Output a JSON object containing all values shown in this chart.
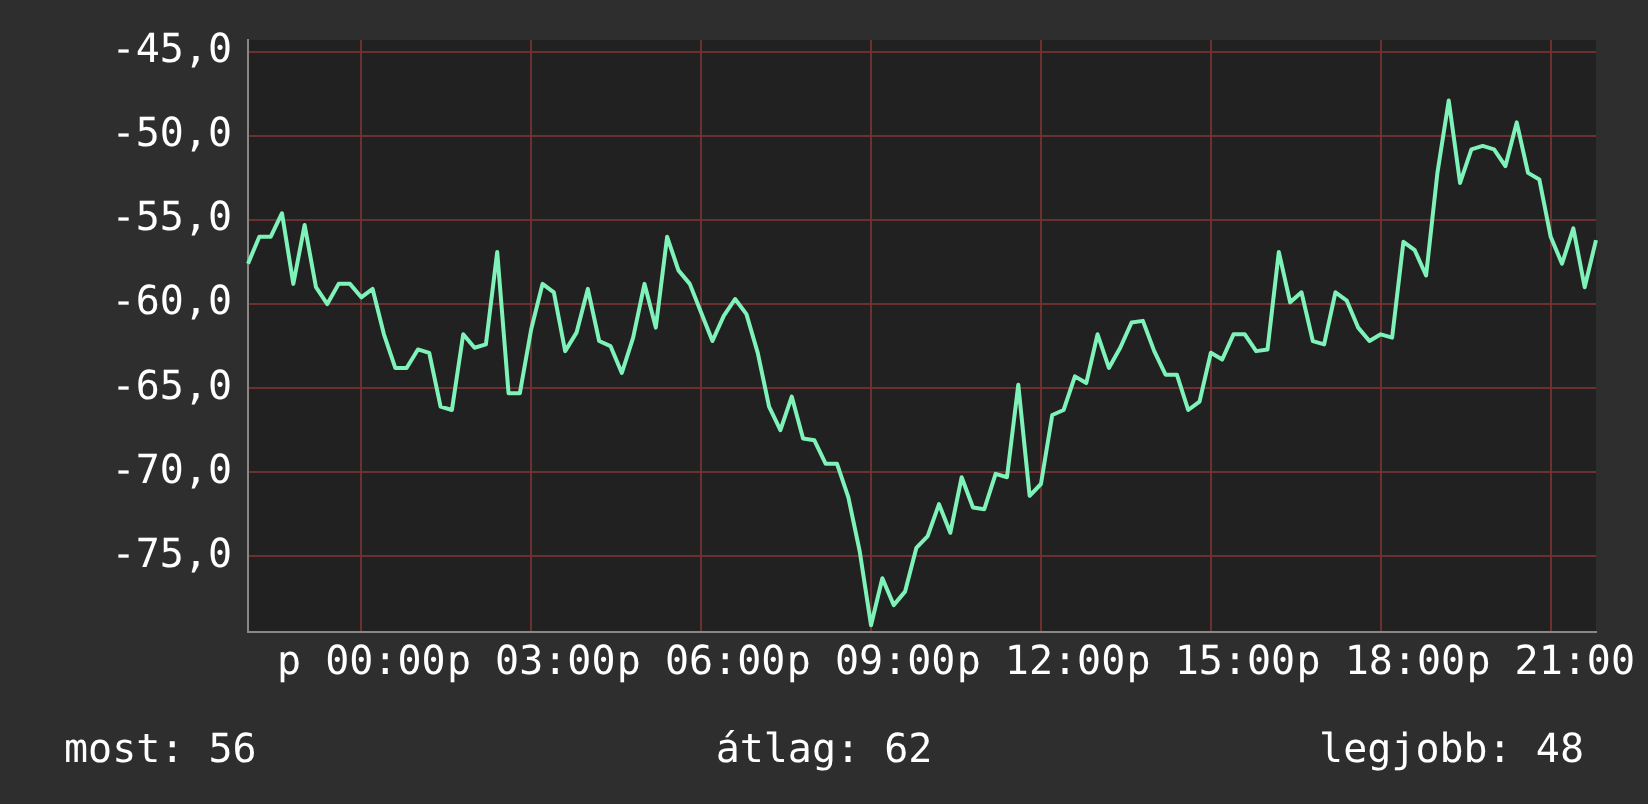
{
  "chart_data": {
    "type": "line",
    "color": "#7ef2b8",
    "grid": true,
    "legend": false,
    "marker": "none",
    "line_style": "solid",
    "categories": [
      null,
      null,
      null,
      null,
      null,
      null,
      null,
      null,
      null,
      null,
      "p 00:00",
      null,
      null,
      null,
      null,
      null,
      null,
      null,
      null,
      null,
      null,
      null,
      null,
      null,
      null,
      "p 03:00",
      null,
      null,
      null,
      null,
      null,
      null,
      null,
      null,
      null,
      null,
      null,
      null,
      null,
      null,
      "p 06:00",
      null,
      null,
      null,
      null,
      null,
      null,
      null,
      null,
      null,
      null,
      null,
      null,
      null,
      null,
      "p 09:00",
      null,
      null,
      null,
      null,
      null,
      null,
      null,
      null,
      null,
      null,
      null,
      null,
      null,
      null,
      "p 12:00",
      null,
      null,
      null,
      null,
      null,
      null,
      null,
      null,
      null,
      null,
      null,
      null,
      null,
      null,
      "p 15:00",
      null,
      null,
      null,
      null,
      null,
      null,
      null,
      null,
      null,
      null,
      null,
      null,
      null,
      null,
      "p 18:00",
      null,
      null,
      null,
      null,
      null,
      null,
      null,
      null,
      null,
      null,
      null,
      null,
      null,
      null,
      "p 21:00",
      null,
      null,
      null,
      null
    ],
    "ylim": [
      -79.5,
      -44.3
    ],
    "yticks": [
      {
        "value": -75,
        "label": "-75,0"
      },
      {
        "value": -70,
        "label": "-70,0"
      },
      {
        "value": -65,
        "label": "-65,0"
      },
      {
        "value": -60,
        "label": "-60,0"
      },
      {
        "value": -55,
        "label": "-55,0"
      },
      {
        "value": -50,
        "label": "-50,0"
      },
      {
        "value": -45,
        "label": "-45,0"
      }
    ],
    "values": [
      -57.6,
      -56.0,
      -56.0,
      -54.6,
      -58.8,
      -55.3,
      -59.0,
      -60.0,
      -58.8,
      -58.8,
      -59.6,
      -59.1,
      -61.8,
      -63.8,
      -63.8,
      -62.7,
      -62.9,
      -66.1,
      -66.3,
      -61.8,
      -62.6,
      -62.4,
      -56.9,
      -65.3,
      -65.3,
      -61.5,
      -58.8,
      -59.3,
      -62.8,
      -61.7,
      -59.1,
      -62.2,
      -62.5,
      -64.1,
      -62.0,
      -58.8,
      -61.4,
      -56.0,
      -58.0,
      -58.8,
      -60.5,
      -62.2,
      -60.7,
      -59.7,
      -60.6,
      -62.9,
      -66.1,
      -67.5,
      -65.5,
      -68.0,
      -68.1,
      -69.5,
      -69.5,
      -71.5,
      -74.7,
      -79.1,
      -76.3,
      -77.9,
      -77.1,
      -74.5,
      -73.8,
      -71.9,
      -73.6,
      -70.3,
      -72.1,
      -72.2,
      -70.1,
      -70.3,
      -64.8,
      -71.4,
      -70.7,
      -66.6,
      -66.3,
      -64.3,
      -64.7,
      -61.8,
      -63.8,
      -62.6,
      -61.1,
      -61.0,
      -62.8,
      -64.2,
      -64.2,
      -66.3,
      -65.8,
      -62.9,
      -63.3,
      -61.8,
      -61.8,
      -62.8,
      -62.7,
      -56.9,
      -59.9,
      -59.3,
      -62.2,
      -62.4,
      -59.3,
      -59.8,
      -61.4,
      -62.2,
      -61.8,
      -62.0,
      -56.3,
      -56.8,
      -58.3,
      -52.2,
      -47.9,
      -52.8,
      -50.8,
      -50.6,
      -50.8,
      -51.8,
      -49.2,
      -52.2,
      -52.6,
      -56.0,
      -57.6,
      -55.5,
      -59.0,
      -56.2
    ],
    "annotations": [
      "most: 56",
      "átlag: 62",
      "legjobb: 48"
    ]
  }
}
